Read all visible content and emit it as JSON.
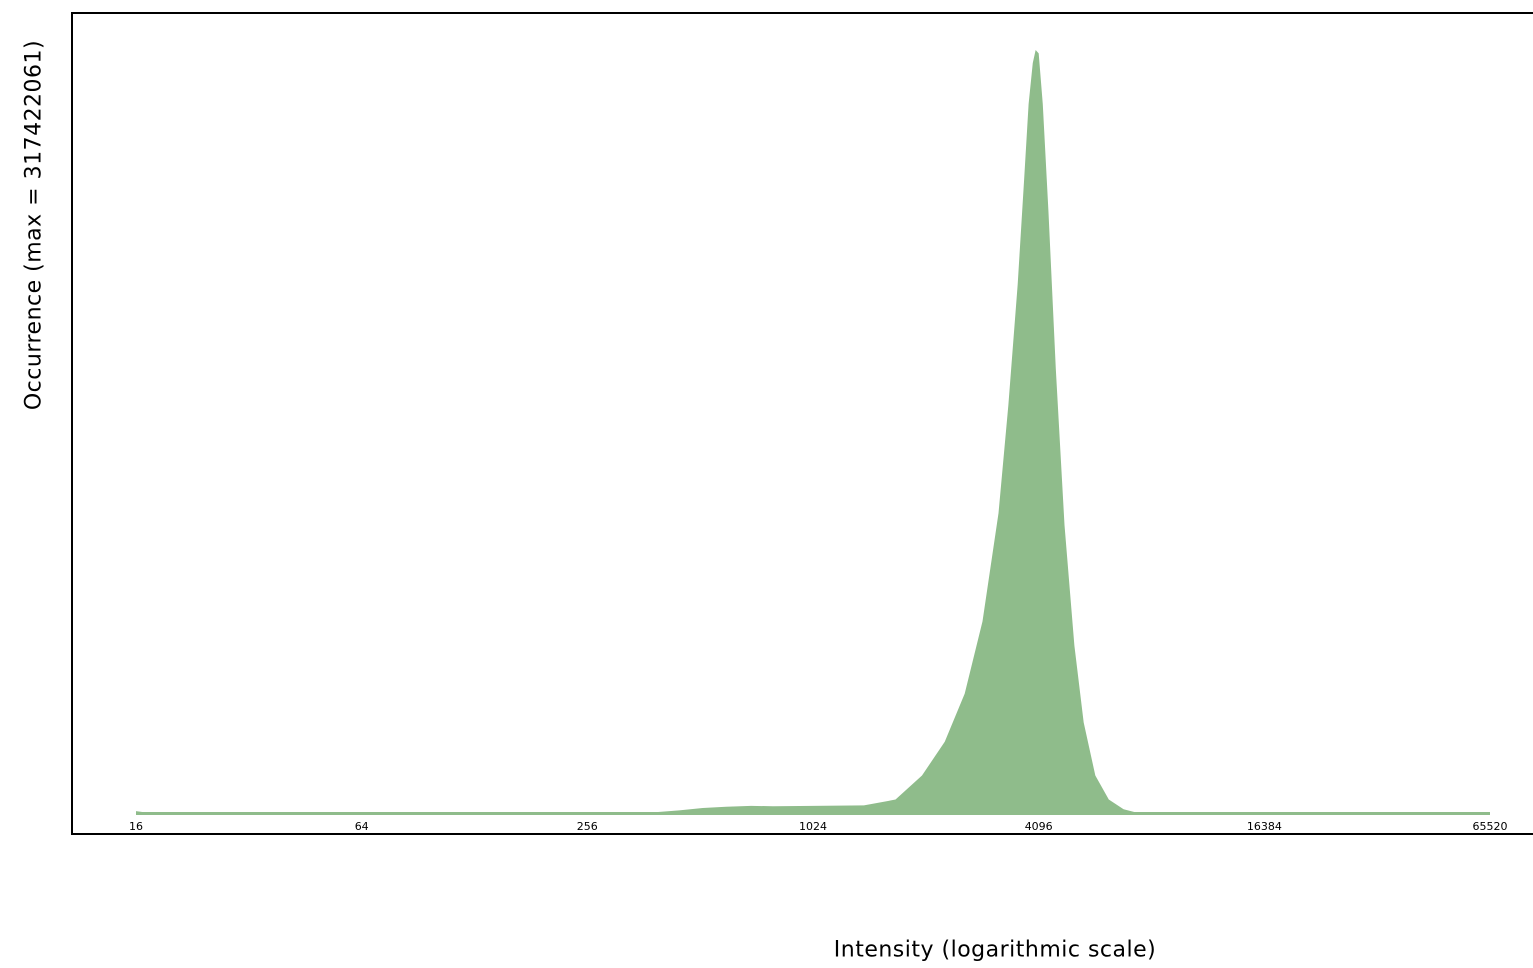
{
  "chart_data": {
    "type": "area",
    "xlabel": "Intensity (logarithmic scale)",
    "ylabel": "Occurrence (max = 317422061)",
    "x_scale": "log2",
    "x_ticks": [
      16,
      64,
      256,
      1024,
      4096,
      16384,
      65520
    ],
    "x_tick_labels": [
      "16",
      "64",
      "256",
      "1024",
      "4096",
      "16384",
      "65520"
    ],
    "xlim": [
      16,
      65520
    ],
    "ylim": [
      0,
      317422061
    ],
    "grid": false,
    "fill_color": "#8fbc8b",
    "series": [
      {
        "x": [
          16,
          17,
          20,
          30,
          40,
          64,
          120,
          256,
          380,
          450,
          520,
          600,
          700,
          800,
          1024,
          1400,
          1700,
          2000,
          2300,
          2600,
          2900,
          3200,
          3400,
          3600,
          3750,
          3850,
          3950,
          4020,
          4096,
          4200,
          4350,
          4550,
          4800,
          5100,
          5400,
          5800,
          6300,
          6900,
          7500,
          8300,
          10000,
          16384,
          30000,
          65520
        ],
        "y": [
          1200000,
          600000,
          0,
          200000,
          0,
          0,
          0,
          0,
          600000,
          1500000,
          2500000,
          3000000,
          3400000,
          3200000,
          3400000,
          3600000,
          6000000,
          16000000,
          30000000,
          50000000,
          80000000,
          125000000,
          170000000,
          220000000,
          265000000,
          295000000,
          312000000,
          317422061,
          316000000,
          295000000,
          250000000,
          185000000,
          120000000,
          70000000,
          38000000,
          16000000,
          6000000,
          2000000,
          500000,
          0,
          0,
          0,
          0,
          0
        ]
      }
    ]
  }
}
